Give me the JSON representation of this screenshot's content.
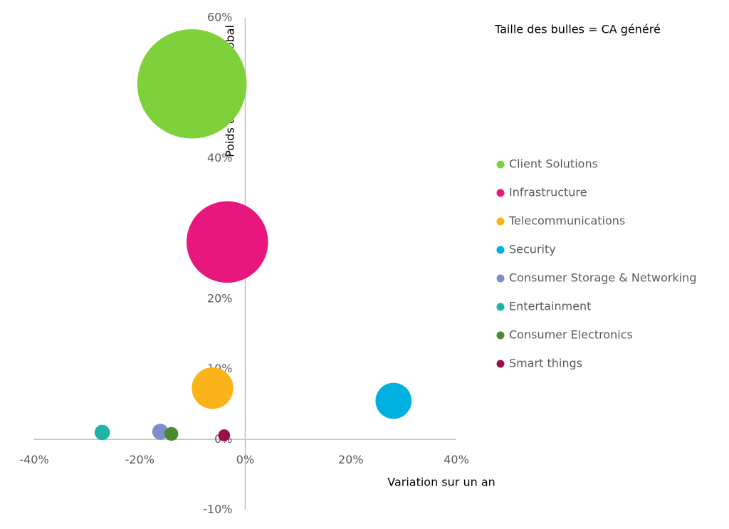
{
  "chart_data": {
    "type": "bubble",
    "annotation": "Taille des bulles = CA généré",
    "x_label": "Variation sur un an",
    "y_label": "Poids dans le CA global",
    "xlim": [
      -40,
      40
    ],
    "ylim": [
      -10,
      60
    ],
    "xticks": [
      {
        "value": -40,
        "label": "-40%"
      },
      {
        "value": -20,
        "label": "-20%"
      },
      {
        "value": 0,
        "label": "0%"
      },
      {
        "value": 20,
        "label": "20%"
      },
      {
        "value": 40,
        "label": "40%"
      }
    ],
    "yticks": [
      {
        "value": -10,
        "label": "-10%"
      },
      {
        "value": 0,
        "label": "0%"
      },
      {
        "value": 10,
        "label": "10%"
      },
      {
        "value": 20,
        "label": "20%"
      },
      {
        "value": 30,
        "label": "30%"
      },
      {
        "value": 40,
        "label": "40%"
      },
      {
        "value": 50,
        "label": "50%"
      },
      {
        "value": 60,
        "label": "60%"
      }
    ],
    "grid": false,
    "legend": "right",
    "series": [
      {
        "name": "Client Solutions",
        "color": "#7fd13b",
        "x": -10.1,
        "y": 50.6,
        "size": 50.6
      },
      {
        "name": "Infrastructure",
        "color": "#e8177d",
        "x": -3.4,
        "y": 28.1,
        "size": 28.1
      },
      {
        "name": "Telecommunications",
        "color": "#fbb31a",
        "x": -6.2,
        "y": 7.3,
        "size": 7.3
      },
      {
        "name": "Security",
        "color": "#00b0e0",
        "x": 28.1,
        "y": 5.5,
        "size": 5.5
      },
      {
        "name": "Consumer Storage & Networking",
        "color": "#7a8fcc",
        "x": -16.1,
        "y": 1.1,
        "size": 1.1
      },
      {
        "name": "Entertainment",
        "color": "#1fb5a5",
        "x": -27.1,
        "y": 1.0,
        "size": 1.0
      },
      {
        "name": "Consumer Electronics",
        "color": "#4a8a2a",
        "x": -14.0,
        "y": 0.8,
        "size": 0.8
      },
      {
        "name": "Smart things",
        "color": "#9a0f4a",
        "x": -4.0,
        "y": 0.6,
        "size": 0.6
      }
    ]
  }
}
